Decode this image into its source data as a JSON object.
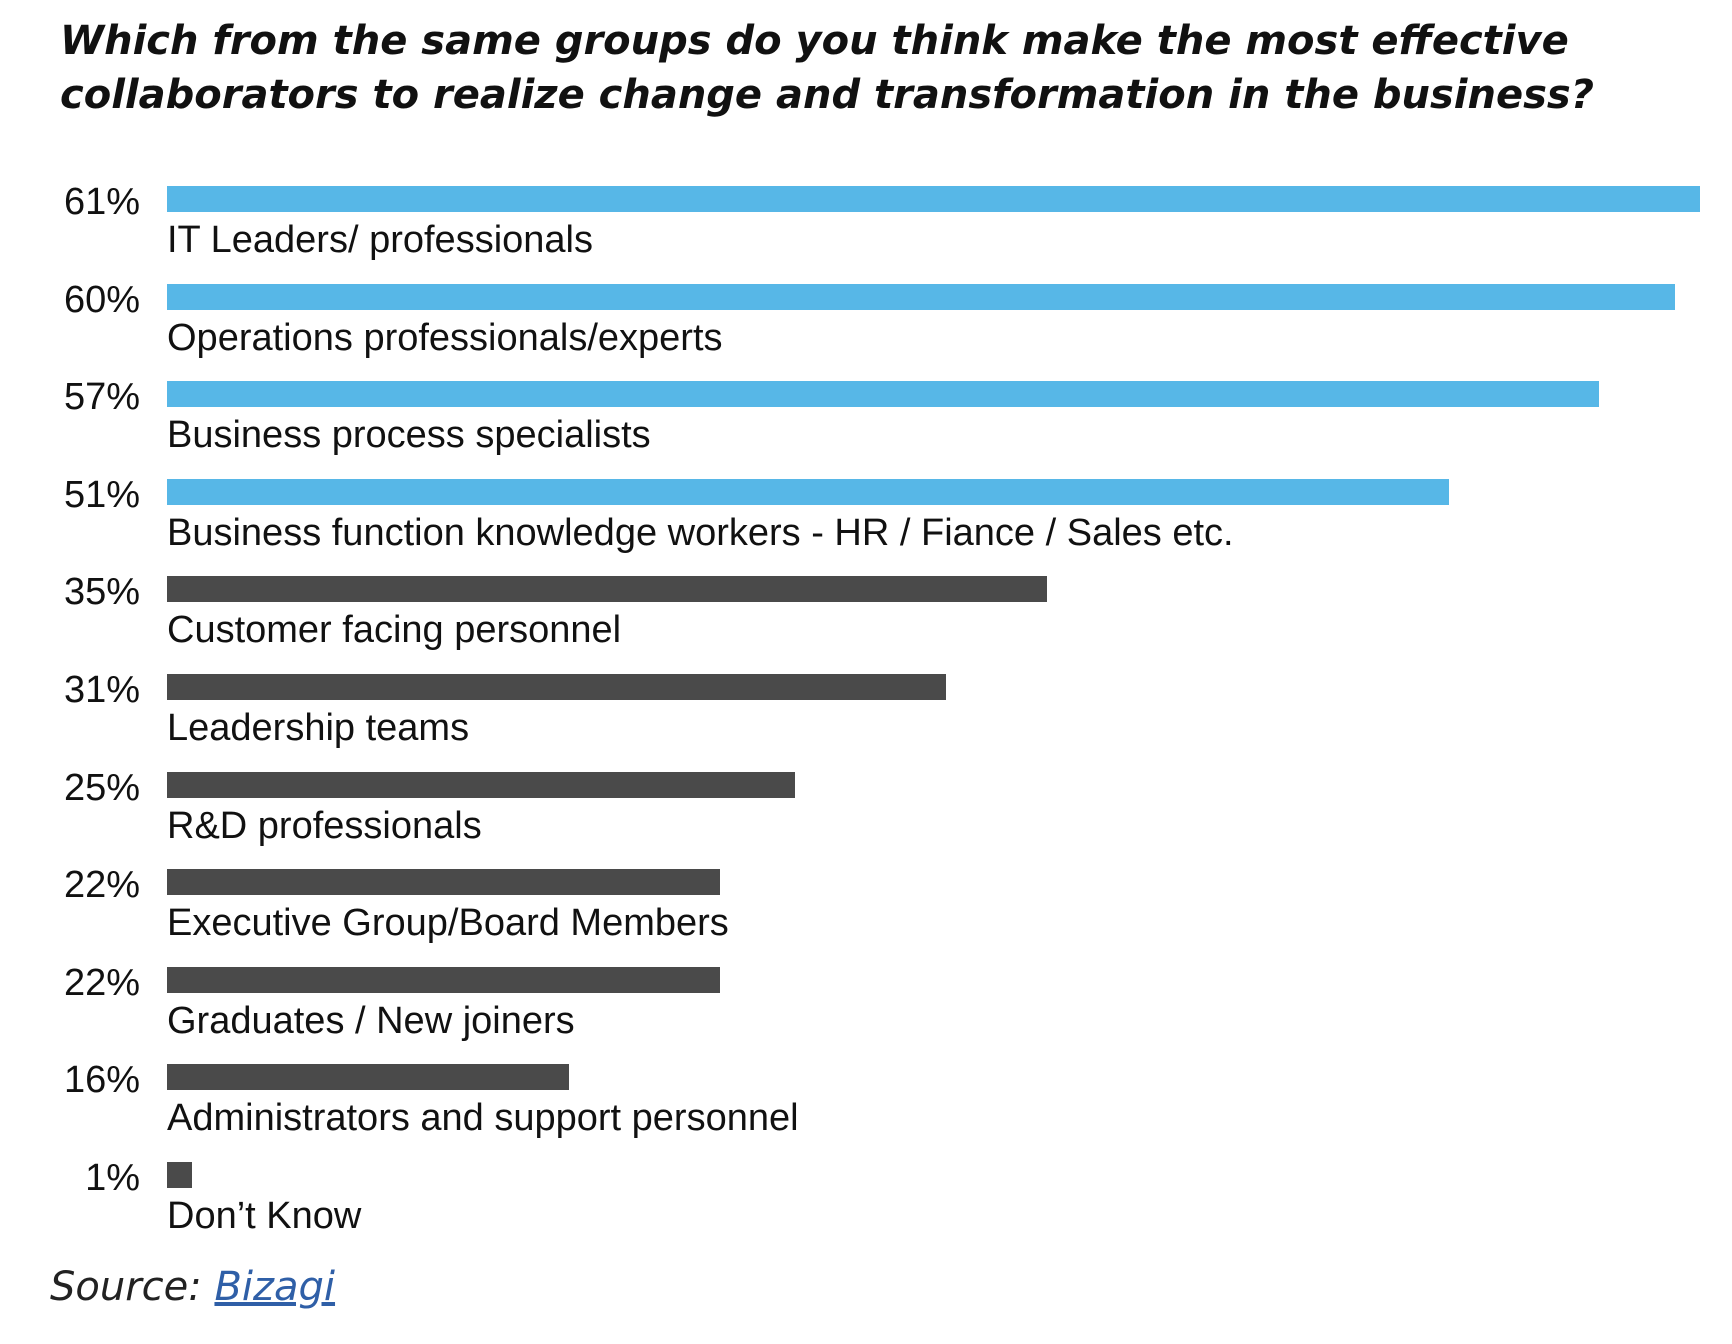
{
  "chart_data": {
    "type": "bar",
    "orientation": "horizontal",
    "title": "Which from the same groups do you think make the most effective collaborators to realize change and transformation in the business?",
    "categories": [
      "IT Leaders/ professionals",
      "Operations professionals/experts",
      "Business process specialists",
      "Business function knowledge workers - HR / Fiance / Sales etc.",
      "Customer facing personnel",
      "Leadership teams",
      "R&D professionals",
      "Executive Group/Board Members",
      "Graduates / New joiners",
      "Administrators and support personnel",
      "Don’t Know"
    ],
    "values": [
      61,
      60,
      57,
      51,
      35,
      31,
      25,
      22,
      22,
      16,
      1
    ],
    "value_labels": [
      "61%",
      "60%",
      "57%",
      "51%",
      "35%",
      "31%",
      "25%",
      "22%",
      "22%",
      "16%",
      "1%"
    ],
    "bar_colors": [
      "#57b7e7",
      "#57b7e7",
      "#57b7e7",
      "#57b7e7",
      "#4a4a4a",
      "#4a4a4a",
      "#4a4a4a",
      "#4a4a4a",
      "#4a4a4a",
      "#4a4a4a",
      "#4a4a4a"
    ],
    "xlim": [
      0,
      61
    ],
    "grid": false,
    "legend": "none"
  },
  "source": {
    "prefix": "Source: ",
    "link_text": "Bizagi"
  }
}
